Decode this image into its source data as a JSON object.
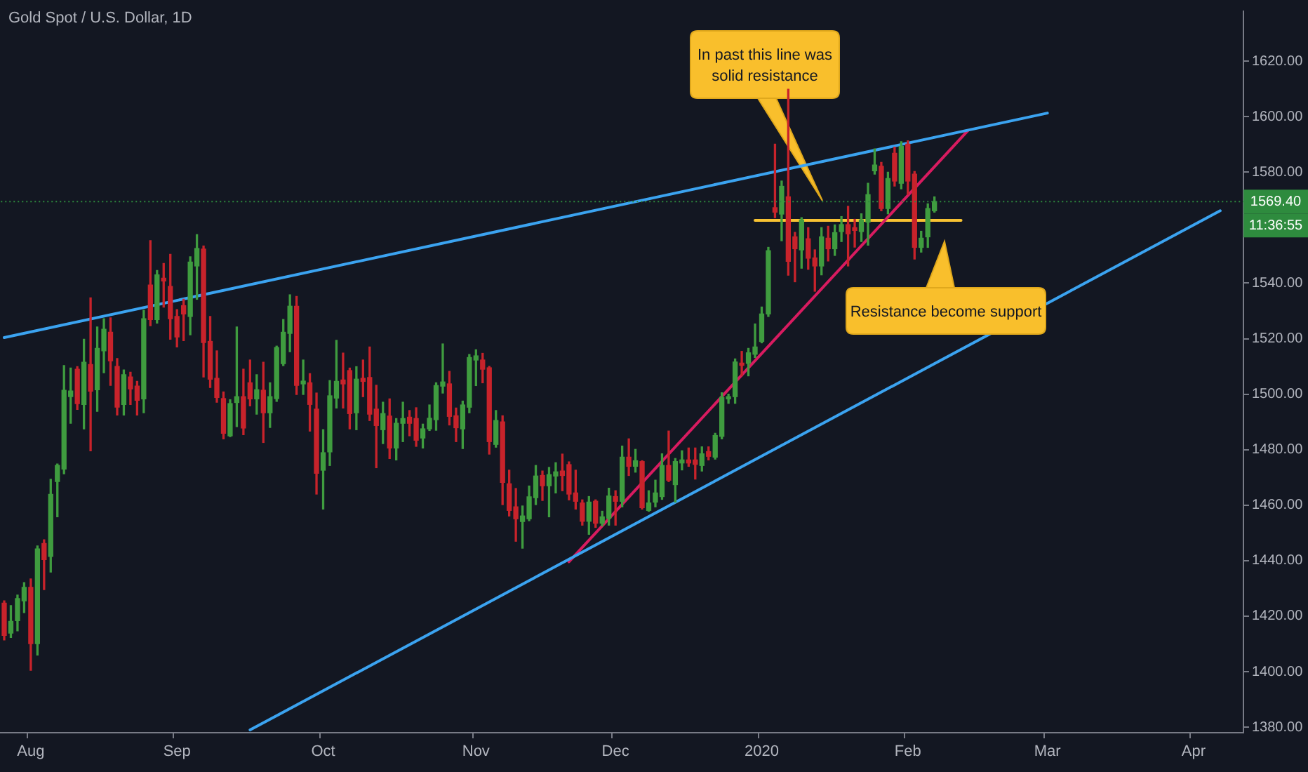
{
  "chart_data": {
    "type": "candlestick",
    "title": "Gold Spot / U.S. Dollar, 1D",
    "categories": [
      null,
      null,
      null,
      null,
      "Aug",
      null,
      null,
      null,
      null,
      null,
      null,
      null,
      null,
      null,
      null,
      null,
      null,
      null,
      null,
      null,
      null,
      null,
      null,
      null,
      null,
      null,
      "Sep",
      null,
      null,
      null,
      null,
      null,
      null,
      null,
      null,
      null,
      null,
      null,
      null,
      null,
      null,
      null,
      null,
      null,
      null,
      null,
      null,
      null,
      "Oct",
      null,
      null,
      null,
      null,
      null,
      null,
      null,
      null,
      null,
      null,
      null,
      null,
      null,
      null,
      null,
      null,
      null,
      null,
      null,
      null,
      null,
      null,
      "Nov",
      null,
      null,
      null,
      null,
      null,
      null,
      null,
      null,
      null,
      null,
      null,
      null,
      null,
      null,
      null,
      null,
      null,
      null,
      null,
      null,
      "Dec",
      null,
      null,
      null,
      null,
      null,
      null,
      null,
      null,
      null,
      null,
      null,
      null,
      null,
      null,
      null,
      null,
      null,
      null,
      null,
      null,
      null,
      "2020",
      null,
      null,
      null,
      null,
      null,
      null,
      null,
      null,
      null,
      null,
      null,
      null,
      null,
      null,
      null,
      null,
      null,
      null,
      null,
      null,
      null,
      "Feb",
      null,
      null,
      null,
      null,
      null,
      null,
      null,
      null,
      null,
      null,
      null,
      null,
      null,
      null,
      null,
      null,
      null,
      null,
      null,
      null,
      "Mar",
      null,
      null,
      null,
      null,
      null,
      null,
      null,
      null,
      null,
      null,
      null,
      null,
      null,
      null,
      null,
      null,
      null,
      null,
      null,
      null,
      null,
      "Apr",
      null,
      null,
      null,
      null,
      null,
      null,
      null
    ],
    "ohlc": [
      [
        1424.7,
        1425.5,
        1411.4,
        1413.1
      ],
      [
        1413.9,
        1423.8,
        1412.3,
        1418.1
      ],
      [
        1418.4,
        1427.6,
        1414.7,
        1426.3
      ],
      [
        1425.5,
        1432.1,
        1421.3,
        1430.4
      ],
      [
        1430.4,
        1433.4,
        1400.5,
        1410.1
      ],
      [
        1410.1,
        1445.3,
        1406.0,
        1444.2
      ],
      [
        1446.2,
        1447.5,
        1429.6,
        1440.4
      ],
      [
        1441.5,
        1469.3,
        1435.9,
        1463.9
      ],
      [
        1468.5,
        1474.8,
        1455.8,
        1474.3
      ],
      [
        1473.0,
        1510.3,
        1471.3,
        1501.4
      ],
      [
        1499.1,
        1509.4,
        1489.5,
        1501.1
      ],
      [
        1509.0,
        1509.9,
        1494.5,
        1496.6
      ],
      [
        1496.3,
        1519.8,
        1487.5,
        1511.5
      ],
      [
        1510.7,
        1534.7,
        1479.6,
        1501.1
      ],
      [
        1501.6,
        1524.2,
        1493.8,
        1516.5
      ],
      [
        1515.6,
        1527.2,
        1507.7,
        1523.4
      ],
      [
        1522.3,
        1527.5,
        1503.2,
        1512.0
      ],
      [
        1510.0,
        1512.8,
        1492.5,
        1495.3
      ],
      [
        1496.3,
        1508.7,
        1492.5,
        1507.0
      ],
      [
        1506.2,
        1507.9,
        1496.3,
        1501.9
      ],
      [
        1502.9,
        1504.6,
        1492.5,
        1497.8
      ],
      [
        1498.3,
        1530.2,
        1493.3,
        1527.2
      ],
      [
        1539.3,
        1555.3,
        1524.7,
        1526.9
      ],
      [
        1526.9,
        1544.6,
        1525.6,
        1543.0
      ],
      [
        1541.8,
        1547.1,
        1531.4,
        1540.8
      ],
      [
        1538.8,
        1550.4,
        1519.8,
        1527.2
      ],
      [
        1528.0,
        1530.5,
        1517.0,
        1520.6
      ],
      [
        1531.9,
        1534.2,
        1519.3,
        1528.9
      ],
      [
        1528.0,
        1549.5,
        1521.4,
        1547.6
      ],
      [
        1546.2,
        1557.5,
        1534.2,
        1552.5
      ],
      [
        1552.3,
        1553.4,
        1506.2,
        1518.6
      ],
      [
        1519.0,
        1528.0,
        1502.4,
        1505.4
      ],
      [
        1505.7,
        1515.6,
        1497.1,
        1498.8
      ],
      [
        1498.4,
        1500.8,
        1483.9,
        1485.9
      ],
      [
        1485.0,
        1498.0,
        1484.7,
        1496.6
      ],
      [
        1497.0,
        1524.2,
        1488.3,
        1499.1
      ],
      [
        1499.1,
        1509.0,
        1485.4,
        1487.8
      ],
      [
        1504.1,
        1512.3,
        1495.8,
        1498.3
      ],
      [
        1498.3,
        1507.0,
        1492.8,
        1501.6
      ],
      [
        1501.4,
        1511.5,
        1482.6,
        1493.3
      ],
      [
        1493.3,
        1504.1,
        1488.0,
        1499.1
      ],
      [
        1498.4,
        1517.3,
        1497.4,
        1516.8
      ],
      [
        1511.0,
        1526.9,
        1510.3,
        1522.3
      ],
      [
        1521.9,
        1535.8,
        1515.3,
        1531.7
      ],
      [
        1531.7,
        1535.2,
        1499.9,
        1503.2
      ],
      [
        1503.7,
        1512.3,
        1499.9,
        1504.7
      ],
      [
        1504.1,
        1507.4,
        1486.7,
        1496.3
      ],
      [
        1494.6,
        1500.4,
        1464.0,
        1471.5
      ],
      [
        1472.6,
        1487.2,
        1458.6,
        1478.9
      ],
      [
        1479.2,
        1504.9,
        1474.3,
        1499.4
      ],
      [
        1498.6,
        1519.4,
        1495.0,
        1504.6
      ],
      [
        1505.1,
        1514.8,
        1495.0,
        1503.7
      ],
      [
        1508.5,
        1509.4,
        1487.5,
        1493.0
      ],
      [
        1493.3,
        1509.9,
        1487.2,
        1505.4
      ],
      [
        1505.7,
        1512.3,
        1499.1,
        1504.6
      ],
      [
        1506.0,
        1517.0,
        1490.5,
        1492.8
      ],
      [
        1494.6,
        1503.2,
        1473.5,
        1488.7
      ],
      [
        1487.2,
        1497.1,
        1482.2,
        1493.0
      ],
      [
        1492.1,
        1498.3,
        1476.8,
        1480.6
      ],
      [
        1480.6,
        1491.2,
        1476.3,
        1489.5
      ],
      [
        1489.5,
        1497.1,
        1482.9,
        1491.2
      ],
      [
        1491.7,
        1494.1,
        1485.0,
        1489.5
      ],
      [
        1491.2,
        1495.1,
        1481.2,
        1483.4
      ],
      [
        1484.2,
        1489.2,
        1480.6,
        1487.5
      ],
      [
        1487.5,
        1496.1,
        1486.9,
        1491.3
      ],
      [
        1490.8,
        1504.1,
        1487.0,
        1503.1
      ],
      [
        1502.9,
        1518.1,
        1500.4,
        1504.4
      ],
      [
        1503.7,
        1508.2,
        1488.9,
        1492.0
      ],
      [
        1492.2,
        1495.0,
        1482.9,
        1487.9
      ],
      [
        1487.5,
        1497.5,
        1480.4,
        1496.1
      ],
      [
        1495.3,
        1514.3,
        1493.3,
        1513.2
      ],
      [
        1512.3,
        1516.0,
        1503.1,
        1513.8
      ],
      [
        1512.3,
        1514.7,
        1504.1,
        1509.0
      ],
      [
        1509.5,
        1510.0,
        1478.4,
        1482.9
      ],
      [
        1481.9,
        1494.1,
        1480.9,
        1490.5
      ],
      [
        1490.0,
        1492.2,
        1460.2,
        1468.2
      ],
      [
        1467.7,
        1472.6,
        1456.1,
        1458.1
      ],
      [
        1459.4,
        1466.0,
        1447.0,
        1455.1
      ],
      [
        1454.1,
        1459.7,
        1444.5,
        1456.1
      ],
      [
        1455.1,
        1466.9,
        1454.4,
        1463.0
      ],
      [
        1462.7,
        1474.3,
        1460.2,
        1470.5
      ],
      [
        1470.7,
        1472.3,
        1461.7,
        1467.0
      ],
      [
        1467.0,
        1473.6,
        1455.8,
        1471.0
      ],
      [
        1470.5,
        1475.3,
        1464.4,
        1472.0
      ],
      [
        1472.3,
        1478.4,
        1465.2,
        1470.7
      ],
      [
        1474.6,
        1475.6,
        1461.9,
        1464.0
      ],
      [
        1464.4,
        1472.6,
        1458.6,
        1461.4
      ],
      [
        1460.8,
        1461.9,
        1452.8,
        1454.2
      ],
      [
        1454.2,
        1463.1,
        1449.5,
        1461.1
      ],
      [
        1461.4,
        1461.9,
        1452.0,
        1453.5
      ],
      [
        1453.5,
        1457.8,
        1452.5,
        1455.8
      ],
      [
        1455.3,
        1466.1,
        1452.8,
        1463.3
      ],
      [
        1463.1,
        1465.2,
        1452.8,
        1461.4
      ],
      [
        1461.4,
        1481.3,
        1459.4,
        1477.3
      ],
      [
        1477.3,
        1483.9,
        1470.7,
        1474.0
      ],
      [
        1474.0,
        1480.1,
        1471.9,
        1476.0
      ],
      [
        1475.7,
        1476.0,
        1458.6,
        1459.1
      ],
      [
        1458.1,
        1465.2,
        1457.8,
        1460.8
      ],
      [
        1461.1,
        1469.0,
        1459.4,
        1464.4
      ],
      [
        1463.1,
        1478.5,
        1462.1,
        1474.3
      ],
      [
        1474.3,
        1486.7,
        1468.5,
        1469.0
      ],
      [
        1467.4,
        1476.8,
        1461.1,
        1475.7
      ],
      [
        1475.2,
        1479.6,
        1472.7,
        1476.3
      ],
      [
        1476.3,
        1480.6,
        1474.0,
        1475.2
      ],
      [
        1476.3,
        1480.6,
        1469.4,
        1474.7
      ],
      [
        1474.3,
        1481.0,
        1472.3,
        1478.5
      ],
      [
        1479.3,
        1481.0,
        1476.3,
        1477.6
      ],
      [
        1477.3,
        1485.9,
        1476.6,
        1485.1
      ],
      [
        1484.8,
        1500.5,
        1483.9,
        1498.8
      ],
      [
        1498.3,
        1500.0,
        1496.7,
        1499.1
      ],
      [
        1499.1,
        1512.7,
        1496.7,
        1511.6
      ],
      [
        1511.2,
        1515.4,
        1506.6,
        1510.4
      ],
      [
        1511.1,
        1516.5,
        1506.6,
        1514.9
      ],
      [
        1514.4,
        1525.3,
        1513.2,
        1517.0
      ],
      [
        1519.0,
        1531.4,
        1518.5,
        1528.9
      ],
      [
        1528.9,
        1552.9,
        1528.0,
        1551.7
      ],
      [
        1567.2,
        1590.1,
        1563.6,
        1565.6
      ],
      [
        1564.9,
        1576.8,
        1555.3,
        1574.9
      ],
      [
        1571.1,
        1609.9,
        1542.9,
        1547.9
      ],
      [
        1556.7,
        1558.3,
        1540.5,
        1552.4
      ],
      [
        1552.0,
        1563.6,
        1545.4,
        1562.8
      ],
      [
        1556.0,
        1560.0,
        1545.0,
        1549.0
      ],
      [
        1549.1,
        1552.0,
        1537.1,
        1546.2
      ],
      [
        1546.2,
        1560.0,
        1543.0,
        1556.7
      ],
      [
        1556.2,
        1560.5,
        1548.0,
        1552.4
      ],
      [
        1552.4,
        1561.0,
        1550.0,
        1558.2
      ],
      [
        1558.6,
        1564.0,
        1555.0,
        1561.1
      ],
      [
        1561.1,
        1567.7,
        1546.2,
        1557.8
      ],
      [
        1560.0,
        1563.0,
        1553.0,
        1559.0
      ],
      [
        1558.6,
        1565.0,
        1555.0,
        1562.8
      ],
      [
        1562.0,
        1576.0,
        1553.7,
        1571.9
      ],
      [
        1580.5,
        1588.4,
        1579.3,
        1582.6
      ],
      [
        1582.1,
        1583.5,
        1566.1,
        1566.9
      ],
      [
        1566.9,
        1580.0,
        1565.0,
        1577.7
      ],
      [
        1586.8,
        1589.0,
        1575.0,
        1576.8
      ],
      [
        1576.0,
        1591.0,
        1574.0,
        1589.3
      ],
      [
        1590.1,
        1591.3,
        1572.0,
        1576.8
      ],
      [
        1579.3,
        1580.2,
        1548.7,
        1552.9
      ],
      [
        1552.9,
        1558.7,
        1551.2,
        1556.2
      ],
      [
        1556.7,
        1568.6,
        1552.9,
        1566.9
      ],
      [
        1566.1,
        1571.1,
        1565.6,
        1569.4
      ],
      null,
      null,
      null,
      null,
      null,
      null,
      null,
      null,
      null,
      null,
      null,
      null,
      null,
      null,
      null,
      null,
      null,
      null,
      null,
      null,
      null,
      null,
      null,
      null,
      null,
      null,
      null,
      null,
      null,
      null,
      null,
      null,
      null,
      null,
      null,
      null,
      null,
      null,
      null,
      null,
      null,
      null,
      null,
      null,
      null,
      null
    ],
    "colors": [
      "#c8232b",
      "#3f9c3f",
      "#3f9c3f",
      "#3f9c3f",
      "#c8232b",
      "#3f9c3f",
      "#c8232b",
      "#3f9c3f",
      "#3f9c3f",
      "#3f9c3f",
      "#3f9c3f",
      "#c8232b",
      "#3f9c3f",
      "#c8232b",
      "#3f9c3f",
      "#3f9c3f",
      "#c8232b",
      "#c8232b",
      "#3f9c3f",
      "#c8232b",
      "#c8232b",
      "#3f9c3f",
      "#c8232b",
      "#3f9c3f",
      "#c8232b",
      "#c8232b",
      "#c8232b",
      "#c8232b",
      "#3f9c3f",
      "#3f9c3f",
      "#c8232b",
      "#c8232b",
      "#c8232b",
      "#c8232b",
      "#3f9c3f",
      "#3f9c3f",
      "#c8232b",
      "#c8232b",
      "#3f9c3f",
      "#c8232b",
      "#3f9c3f",
      "#3f9c3f",
      "#3f9c3f",
      "#3f9c3f",
      "#c8232b",
      "#3f9c3f",
      "#c8232b",
      "#c8232b",
      "#3f9c3f",
      "#3f9c3f",
      "#3f9c3f",
      "#c8232b",
      "#c8232b",
      "#3f9c3f",
      "#c8232b",
      "#c8232b",
      "#c8232b",
      "#3f9c3f",
      "#c8232b",
      "#3f9c3f",
      "#3f9c3f",
      "#c8232b",
      "#c8232b",
      "#3f9c3f",
      "#3f9c3f",
      "#3f9c3f",
      "#3f9c3f",
      "#c8232b",
      "#c8232b",
      "#3f9c3f",
      "#3f9c3f",
      "#3f9c3f",
      "#c8232b",
      "#c8232b",
      "#3f9c3f",
      "#c8232b",
      "#c8232b",
      "#c8232b",
      "#3f9c3f",
      "#3f9c3f",
      "#3f9c3f",
      "#c8232b",
      "#3f9c3f",
      "#3f9c3f",
      "#c8232b",
      "#c8232b",
      "#c8232b",
      "#c8232b",
      "#3f9c3f",
      "#c8232b",
      "#3f9c3f",
      "#3f9c3f",
      "#c8232b",
      "#3f9c3f",
      "#c8232b",
      "#3f9c3f",
      "#c8232b",
      "#3f9c3f",
      "#3f9c3f",
      "#3f9c3f",
      "#c8232b",
      "#3f9c3f",
      "#3f9c3f",
      "#c8232b",
      "#c8232b",
      "#3f9c3f",
      "#c8232b",
      "#3f9c3f",
      "#3f9c3f",
      "#3f9c3f",
      "#3f9c3f",
      "#c8232b",
      "#3f9c3f",
      "#3f9c3f",
      "#3f9c3f",
      "#3f9c3f",
      "#c8232b",
      "#3f9c3f",
      "#c8232b",
      "#c8232b",
      "#3f9c3f",
      "#c8232b",
      "#c8232b",
      "#3f9c3f",
      "#c8232b",
      "#3f9c3f",
      "#3f9c3f",
      "#c8232b",
      "#c8232b",
      "#3f9c3f",
      "#3f9c3f",
      "#3f9c3f",
      "#c8232b",
      "#3f9c3f",
      "#c8232b",
      "#3f9c3f",
      "#c8232b",
      "#c8232b",
      "#3f9c3f",
      "#3f9c3f",
      "#3f9c3f",
      null,
      null,
      null,
      null,
      null,
      null,
      null,
      null,
      null,
      null,
      null,
      null,
      null,
      null,
      null,
      null,
      null,
      null,
      null,
      null,
      null,
      null,
      null,
      null,
      null,
      null,
      null,
      null,
      null,
      null,
      null,
      null,
      null,
      null,
      null,
      null,
      null,
      null,
      null,
      null,
      null,
      null,
      null,
      null,
      null,
      null
    ],
    "series": [
      {
        "type": "line",
        "color": "#3ba3f0",
        "values": [
          1520.4,
          null,
          null,
          null,
          null,
          null,
          null,
          null,
          null,
          null,
          null,
          null,
          null,
          null,
          null,
          null,
          null,
          null,
          null,
          null,
          null,
          null,
          null,
          null,
          null,
          null,
          null,
          null,
          null,
          null,
          null,
          null,
          null,
          null,
          null,
          null,
          null,
          null,
          null,
          null,
          null,
          null,
          null,
          null,
          null,
          null,
          null,
          null,
          null,
          null,
          null,
          null,
          null,
          null,
          null,
          null,
          null,
          null,
          null,
          null,
          null,
          null,
          null,
          null,
          null,
          null,
          null,
          null,
          null,
          null,
          null,
          null,
          null,
          null,
          null,
          null,
          null,
          null,
          null,
          null,
          null,
          null,
          null,
          null,
          null,
          null,
          null,
          null,
          null,
          null,
          null,
          null,
          null,
          null,
          null,
          null,
          null,
          null,
          null,
          null,
          null,
          null,
          null,
          null,
          null,
          null,
          null,
          null,
          null,
          null,
          null,
          null,
          null,
          null,
          null,
          null,
          null,
          null,
          null,
          null,
          null,
          null,
          null,
          null,
          null,
          null,
          null,
          null,
          null,
          null,
          null,
          null,
          null,
          null,
          null,
          null,
          null,
          null,
          null,
          null,
          null,
          null,
          null,
          null,
          null,
          null,
          null,
          null,
          null,
          null,
          null,
          null,
          null,
          null,
          null,
          null,
          null,
          1601.3,
          null,
          null,
          null,
          null,
          null,
          null,
          null,
          null,
          null,
          null,
          null,
          null,
          null,
          null,
          null,
          null,
          null,
          null,
          null,
          null,
          null,
          null,
          null,
          null,
          null,
          null,
          null,
          null,
          null
        ]
      },
      {
        "type": "line",
        "color": "#3ba3f0",
        "values": [
          null,
          null,
          null,
          null,
          null,
          null,
          null,
          null,
          null,
          null,
          null,
          null,
          null,
          null,
          null,
          null,
          null,
          null,
          null,
          null,
          null,
          null,
          null,
          null,
          null,
          null,
          null,
          null,
          null,
          null,
          null,
          null,
          null,
          null,
          null,
          null,
          null,
          1379,
          null,
          null,
          null,
          null,
          null,
          null,
          null,
          null,
          null,
          null,
          null,
          null,
          null,
          null,
          null,
          null,
          null,
          null,
          null,
          null,
          null,
          null,
          null,
          null,
          null,
          null,
          null,
          null,
          null,
          null,
          null,
          null,
          null,
          null,
          null,
          null,
          null,
          null,
          null,
          null,
          null,
          null,
          null,
          null,
          null,
          null,
          null,
          null,
          null,
          null,
          null,
          null,
          null,
          null,
          null,
          null,
          null,
          null,
          null,
          null,
          null,
          null,
          null,
          null,
          null,
          null,
          null,
          null,
          null,
          null,
          null,
          null,
          null,
          null,
          null,
          null,
          null,
          null,
          null,
          null,
          null,
          null,
          null,
          null,
          null,
          null,
          null,
          null,
          null,
          null,
          null,
          null,
          null,
          null,
          null,
          null,
          null,
          null,
          null,
          null,
          null,
          null,
          null,
          null,
          null,
          null,
          null,
          null,
          null,
          null,
          null,
          null,
          null,
          null,
          null,
          null,
          null,
          null,
          null,
          null,
          null,
          null,
          null,
          null,
          null,
          null,
          null,
          null,
          null,
          null,
          null,
          null,
          null,
          null,
          null,
          null,
          null,
          null,
          null,
          null,
          null,
          null,
          null,
          null,
          null,
          1566.1,
          null,
          null,
          null
        ]
      },
      {
        "type": "line",
        "color": "#d81b60",
        "values": [
          null,
          null,
          null,
          null,
          null,
          null,
          null,
          null,
          null,
          null,
          null,
          null,
          null,
          null,
          null,
          null,
          null,
          null,
          null,
          null,
          null,
          null,
          null,
          null,
          null,
          null,
          null,
          null,
          null,
          null,
          null,
          null,
          null,
          null,
          null,
          null,
          null,
          null,
          null,
          null,
          null,
          null,
          null,
          null,
          null,
          null,
          null,
          null,
          null,
          null,
          null,
          null,
          null,
          null,
          null,
          null,
          null,
          null,
          null,
          null,
          null,
          null,
          null,
          null,
          null,
          null,
          null,
          null,
          null,
          null,
          null,
          null,
          null,
          null,
          null,
          null,
          null,
          null,
          null,
          null,
          null,
          null,
          null,
          null,
          null,
          1439.6,
          null,
          null,
          null,
          null,
          null,
          null,
          null,
          null,
          null,
          null,
          null,
          null,
          null,
          null,
          null,
          null,
          null,
          null,
          null,
          null,
          null,
          null,
          null,
          null,
          null,
          null,
          null,
          null,
          null,
          null,
          null,
          null,
          null,
          null,
          null,
          null,
          null,
          null,
          null,
          null,
          null,
          null,
          null,
          null,
          null,
          null,
          null,
          null,
          null,
          null,
          null,
          null,
          null,
          null,
          null,
          null,
          null,
          null,
          null,
          1594.9,
          null,
          null,
          null,
          null,
          null,
          null,
          null,
          null,
          null,
          null,
          null,
          null,
          null,
          null,
          null,
          null,
          null,
          null,
          null,
          null,
          null,
          null,
          null,
          null,
          null,
          null,
          null,
          null,
          null,
          null,
          null,
          null,
          null,
          null,
          null,
          null,
          null,
          null,
          null,
          null,
          null
        ]
      },
      {
        "type": "line",
        "color": "#f7c232",
        "values": [
          null,
          null,
          null,
          null,
          null,
          null,
          null,
          null,
          null,
          null,
          null,
          null,
          null,
          null,
          null,
          null,
          null,
          null,
          null,
          null,
          null,
          null,
          null,
          null,
          null,
          null,
          null,
          null,
          null,
          null,
          null,
          null,
          null,
          null,
          null,
          null,
          null,
          null,
          null,
          null,
          null,
          null,
          null,
          null,
          null,
          null,
          null,
          null,
          null,
          null,
          null,
          null,
          null,
          null,
          null,
          null,
          null,
          null,
          null,
          null,
          null,
          null,
          null,
          null,
          null,
          null,
          null,
          null,
          null,
          null,
          null,
          null,
          null,
          null,
          null,
          null,
          null,
          null,
          null,
          null,
          null,
          null,
          null,
          null,
          null,
          null,
          null,
          null,
          null,
          null,
          null,
          null,
          null,
          null,
          null,
          null,
          null,
          null,
          null,
          null,
          null,
          null,
          null,
          null,
          null,
          null,
          null,
          null,
          null,
          null,
          null,
          null,
          null,
          1562.6,
          null,
          null,
          null,
          null,
          null,
          null,
          null,
          null,
          null,
          null,
          null,
          null,
          null,
          null,
          null,
          null,
          null,
          null,
          null,
          null,
          null,
          null,
          null,
          null,
          null,
          null,
          null,
          null,
          null,
          null,
          1562.6,
          null,
          null,
          null,
          null,
          null,
          null,
          null,
          null,
          null,
          null,
          null,
          null,
          null,
          null,
          null,
          null,
          null,
          null,
          null,
          null,
          null,
          null,
          null,
          null,
          null,
          null,
          null,
          null,
          null,
          null,
          null,
          null,
          null,
          null,
          null,
          null,
          null,
          null,
          null,
          null,
          null,
          null
        ]
      }
    ],
    "ylim": [
      1378,
      1638
    ],
    "yticks": [
      {
        "value": 1380,
        "label": "1380.00"
      },
      {
        "value": 1400,
        "label": "1400.00"
      },
      {
        "value": 1420,
        "label": "1420.00"
      },
      {
        "value": 1440,
        "label": "1440.00"
      },
      {
        "value": 1460,
        "label": "1460.00"
      },
      {
        "value": 1480,
        "label": "1480.00"
      },
      {
        "value": 1500,
        "label": "1500.00"
      },
      {
        "value": 1520,
        "label": "1520.00"
      },
      {
        "value": 1540,
        "label": "1540.00"
      },
      {
        "value": 1580,
        "label": "1580.00"
      },
      {
        "value": 1600,
        "label": "1600.00"
      },
      {
        "value": 1620,
        "label": "1620.00"
      }
    ],
    "ref_lines": [
      {
        "axis": "y",
        "value": 1569.4,
        "label": "1569.40",
        "color": "#2e8b3e",
        "line_style": "dotted"
      }
    ],
    "annotations": [
      "In past this line was solid resistance",
      "Resistance become support",
      "11:36:55"
    ]
  }
}
